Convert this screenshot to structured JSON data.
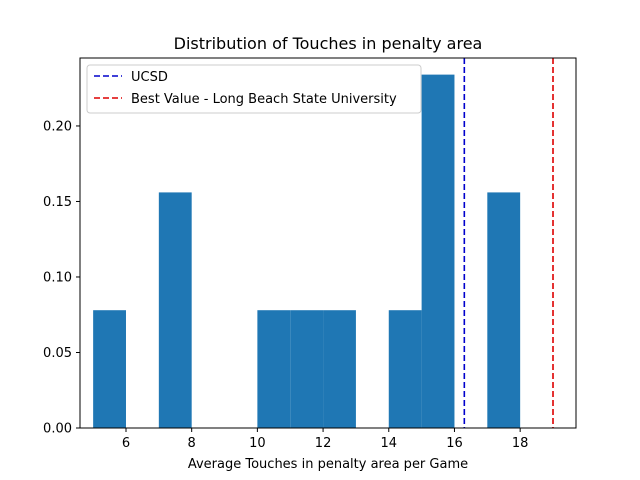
{
  "chart_data": {
    "type": "bar",
    "title": "Distribution of Touches in penalty area",
    "xlabel": "Average Touches in penalty area per Game",
    "ylabel": "",
    "xlim": [
      4.6,
      19.7
    ],
    "ylim": [
      0,
      0.245
    ],
    "xticks": [
      6,
      8,
      10,
      12,
      14,
      16,
      18
    ],
    "yticks": [
      0.0,
      0.05,
      0.1,
      0.15,
      0.2
    ],
    "bar_color": "#1f77b4",
    "bins": [
      {
        "x0": 5.0,
        "x1": 6.0,
        "value": 0.078
      },
      {
        "x0": 6.0,
        "x1": 7.0,
        "value": 0
      },
      {
        "x0": 7.0,
        "x1": 8.0,
        "value": 0.156
      },
      {
        "x0": 8.0,
        "x1": 9.0,
        "value": 0
      },
      {
        "x0": 9.0,
        "x1": 10.0,
        "value": 0
      },
      {
        "x0": 10.0,
        "x1": 11.0,
        "value": 0.078
      },
      {
        "x0": 11.0,
        "x1": 12.0,
        "value": 0.078
      },
      {
        "x0": 12.0,
        "x1": 13.0,
        "value": 0.078
      },
      {
        "x0": 13.0,
        "x1": 14.0,
        "value": 0
      },
      {
        "x0": 14.0,
        "x1": 15.0,
        "value": 0.078
      },
      {
        "x0": 15.0,
        "x1": 16.0,
        "value": 0.234
      },
      {
        "x0": 16.0,
        "x1": 17.0,
        "value": 0
      },
      {
        "x0": 17.0,
        "x1": 18.0,
        "value": 0.156
      }
    ],
    "reference_lines": [
      {
        "name": "UCSD",
        "x": 16.3,
        "color": "#0000cc"
      },
      {
        "name": "Best Value - Long Beach State University",
        "x": 19.0,
        "color": "#dd0000"
      }
    ],
    "legend_position": "top-left"
  }
}
